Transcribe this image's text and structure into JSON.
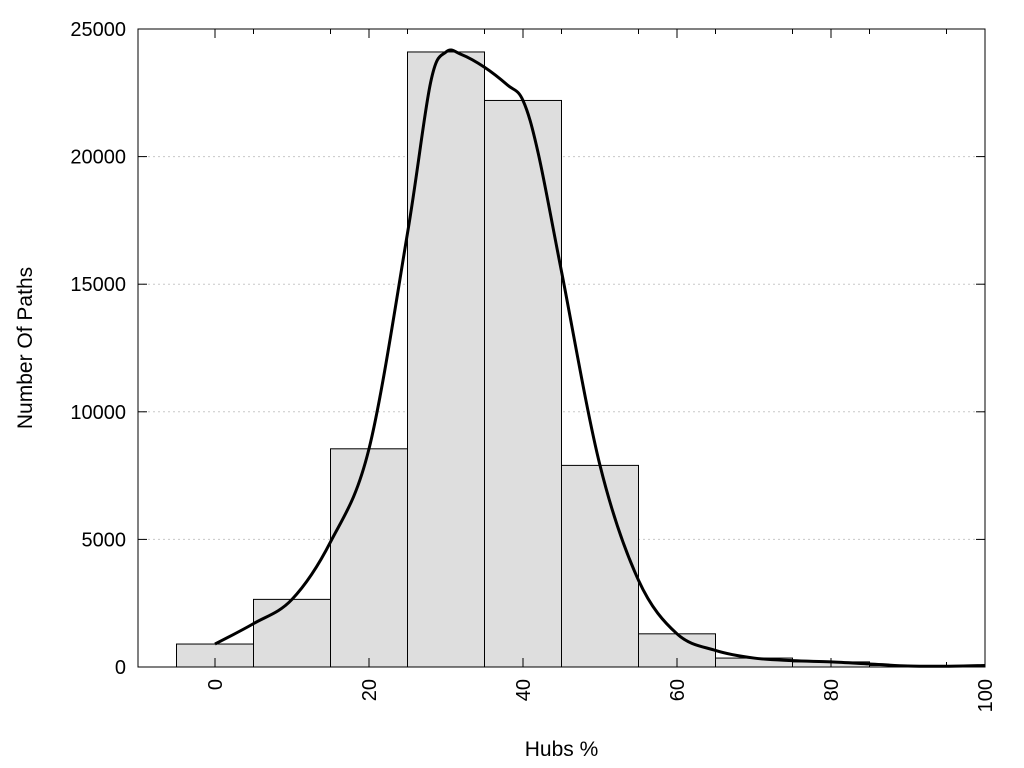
{
  "chart_data": {
    "type": "bar",
    "subtype": "histogram-with-density-curve",
    "xlabel": "Hubs %",
    "ylabel": "Number Of Paths",
    "xlim": [
      -10,
      100
    ],
    "ylim": [
      0,
      25000
    ],
    "xticks": [
      0,
      20,
      40,
      60,
      80,
      100
    ],
    "yticks": [
      0,
      5000,
      10000,
      15000,
      20000,
      25000
    ],
    "grid": "horizontal-dotted",
    "bins": [
      {
        "center": 0,
        "value": 900
      },
      {
        "center": 10,
        "value": 2650
      },
      {
        "center": 20,
        "value": 8550
      },
      {
        "center": 30,
        "value": 24100
      },
      {
        "center": 40,
        "value": 22200
      },
      {
        "center": 50,
        "value": 7900
      },
      {
        "center": 60,
        "value": 1300
      },
      {
        "center": 70,
        "value": 350
      },
      {
        "center": 80,
        "value": 200
      },
      {
        "center": 90,
        "value": 60
      }
    ],
    "bin_width": 10,
    "curve": {
      "x": [
        0,
        5,
        10,
        15,
        20,
        25,
        28,
        30,
        32,
        35,
        38,
        40,
        42,
        45,
        50,
        55,
        60,
        65,
        70,
        75,
        80,
        85,
        90,
        95,
        100
      ],
      "y": [
        900,
        1700,
        2650,
        4900,
        8550,
        17000,
        22900,
        24100,
        24000,
        23500,
        22800,
        22200,
        20100,
        15500,
        7900,
        3400,
        1300,
        650,
        350,
        250,
        200,
        120,
        40,
        30,
        60
      ]
    },
    "colors": {
      "bar_fill": "#dedede",
      "bar_stroke": "#000000",
      "curve": "#000000",
      "grid": "#c8c8c8"
    }
  }
}
